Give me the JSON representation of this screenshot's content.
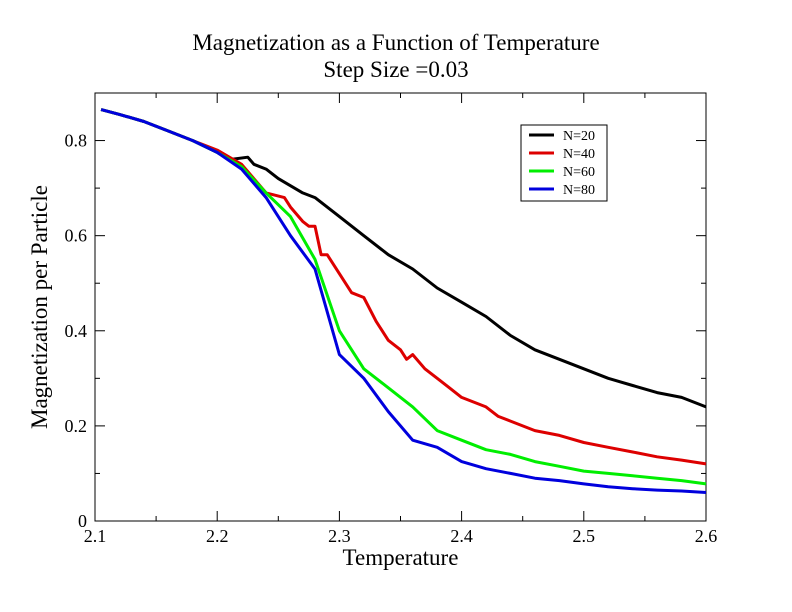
{
  "chart_data": {
    "type": "line",
    "title": "Magnetization as a Function of Temperature",
    "subtitle": "Step Size =0.03",
    "xlabel": "Temperature",
    "ylabel": "Magnetization per Particle",
    "xlim": [
      2.1,
      2.6
    ],
    "ylim": [
      0,
      0.9
    ],
    "xticks": [
      "2.1",
      "2.2",
      "2.3",
      "2.4",
      "2.5",
      "2.6"
    ],
    "yticks": [
      "0",
      "0.2",
      "0.4",
      "0.6",
      "0.8"
    ],
    "grid": false,
    "legend_position": "top-right",
    "series": [
      {
        "name": "N=20",
        "color": "#000000",
        "x": [
          2.105,
          2.12,
          2.14,
          2.16,
          2.18,
          2.2,
          2.21,
          2.225,
          2.23,
          2.24,
          2.25,
          2.27,
          2.28,
          2.3,
          2.32,
          2.34,
          2.36,
          2.38,
          2.4,
          2.42,
          2.44,
          2.46,
          2.48,
          2.5,
          2.52,
          2.54,
          2.56,
          2.58,
          2.6
        ],
        "y": [
          0.865,
          0.855,
          0.84,
          0.82,
          0.8,
          0.775,
          0.76,
          0.765,
          0.75,
          0.74,
          0.72,
          0.69,
          0.68,
          0.64,
          0.6,
          0.56,
          0.53,
          0.49,
          0.46,
          0.43,
          0.39,
          0.36,
          0.34,
          0.32,
          0.3,
          0.285,
          0.27,
          0.26,
          0.24
        ]
      },
      {
        "name": "N=40",
        "color": "#dd0000",
        "x": [
          2.105,
          2.12,
          2.14,
          2.16,
          2.18,
          2.2,
          2.22,
          2.24,
          2.255,
          2.26,
          2.27,
          2.275,
          2.28,
          2.285,
          2.29,
          2.3,
          2.31,
          2.32,
          2.33,
          2.34,
          2.35,
          2.355,
          2.36,
          2.37,
          2.38,
          2.39,
          2.4,
          2.42,
          2.43,
          2.44,
          2.46,
          2.48,
          2.5,
          2.52,
          2.54,
          2.56,
          2.58,
          2.6
        ],
        "y": [
          0.865,
          0.855,
          0.84,
          0.82,
          0.8,
          0.78,
          0.75,
          0.69,
          0.68,
          0.66,
          0.63,
          0.62,
          0.62,
          0.56,
          0.56,
          0.52,
          0.48,
          0.47,
          0.42,
          0.38,
          0.36,
          0.34,
          0.35,
          0.32,
          0.3,
          0.28,
          0.26,
          0.24,
          0.22,
          0.21,
          0.19,
          0.18,
          0.165,
          0.155,
          0.145,
          0.135,
          0.128,
          0.12
        ]
      },
      {
        "name": "N=60",
        "color": "#00ee00",
        "x": [
          2.105,
          2.12,
          2.14,
          2.16,
          2.18,
          2.2,
          2.22,
          2.24,
          2.26,
          2.28,
          2.3,
          2.32,
          2.34,
          2.36,
          2.38,
          2.4,
          2.42,
          2.44,
          2.46,
          2.48,
          2.5,
          2.52,
          2.54,
          2.56,
          2.58,
          2.6
        ],
        "y": [
          0.865,
          0.855,
          0.84,
          0.82,
          0.8,
          0.775,
          0.745,
          0.69,
          0.64,
          0.55,
          0.4,
          0.32,
          0.28,
          0.24,
          0.19,
          0.17,
          0.15,
          0.14,
          0.125,
          0.115,
          0.105,
          0.1,
          0.095,
          0.09,
          0.085,
          0.078
        ]
      },
      {
        "name": "N=80",
        "color": "#0000dd",
        "x": [
          2.105,
          2.12,
          2.14,
          2.16,
          2.18,
          2.2,
          2.22,
          2.24,
          2.26,
          2.28,
          2.3,
          2.32,
          2.34,
          2.36,
          2.38,
          2.4,
          2.42,
          2.44,
          2.46,
          2.48,
          2.5,
          2.52,
          2.54,
          2.56,
          2.58,
          2.6
        ],
        "y": [
          0.865,
          0.855,
          0.84,
          0.82,
          0.8,
          0.775,
          0.74,
          0.68,
          0.6,
          0.53,
          0.35,
          0.3,
          0.23,
          0.17,
          0.155,
          0.125,
          0.11,
          0.1,
          0.09,
          0.085,
          0.078,
          0.072,
          0.068,
          0.065,
          0.063,
          0.06
        ]
      }
    ]
  }
}
